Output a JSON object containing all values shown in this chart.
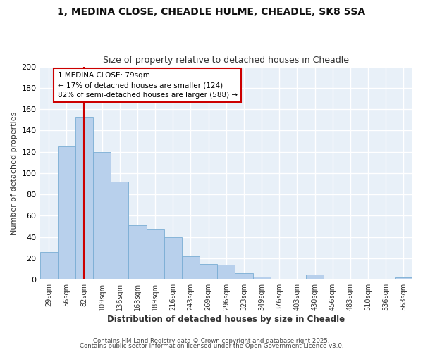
{
  "title1": "1, MEDINA CLOSE, CHEADLE HULME, CHEADLE, SK8 5SA",
  "title2": "Size of property relative to detached houses in Cheadle",
  "xlabel": "Distribution of detached houses by size in Cheadle",
  "ylabel": "Number of detached properties",
  "bins": [
    "29sqm",
    "56sqm",
    "82sqm",
    "109sqm",
    "136sqm",
    "163sqm",
    "189sqm",
    "216sqm",
    "243sqm",
    "269sqm",
    "296sqm",
    "323sqm",
    "349sqm",
    "376sqm",
    "403sqm",
    "430sqm",
    "456sqm",
    "483sqm",
    "510sqm",
    "536sqm",
    "563sqm"
  ],
  "values": [
    26,
    125,
    153,
    120,
    92,
    51,
    48,
    40,
    22,
    15,
    14,
    6,
    3,
    1,
    0,
    5,
    0,
    0,
    0,
    0,
    2
  ],
  "bar_color": "#b8d0ec",
  "bar_edge_color": "#7aadd4",
  "vline_index": 2,
  "annotation_title": "1 MEDINA CLOSE: 79sqm",
  "annotation_line1": "← 17% of detached houses are smaller (124)",
  "annotation_line2": "82% of semi-detached houses are larger (588) →",
  "annotation_box_color": "#ffffff",
  "annotation_box_edge": "#cc0000",
  "vline_color": "#cc0000",
  "footer1": "Contains HM Land Registry data © Crown copyright and database right 2025.",
  "footer2": "Contains public sector information licensed under the Open Government Licence v3.0.",
  "ylim": [
    0,
    200
  ],
  "yticks": [
    0,
    20,
    40,
    60,
    80,
    100,
    120,
    140,
    160,
    180,
    200
  ],
  "fig_bg_color": "#ffffff",
  "plot_bg_color": "#e8f0f8",
  "grid_color": "#ffffff"
}
